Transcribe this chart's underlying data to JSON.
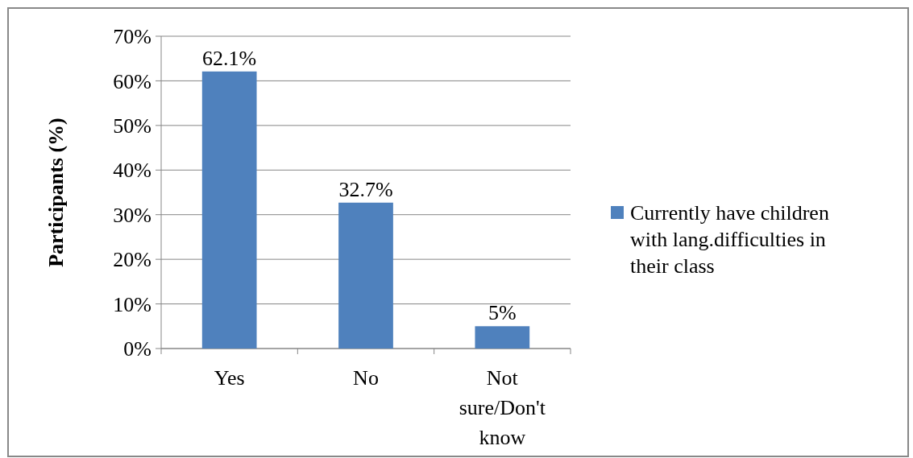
{
  "chart_data": {
    "type": "bar",
    "ylabel": "Participants (%)",
    "categories": [
      "Yes",
      "No",
      "Not sure/Don't know"
    ],
    "series": [
      {
        "name": "Currently have children with lang.difficulties in their class",
        "color": "#4f81bd",
        "values": [
          62.1,
          32.7,
          5
        ],
        "value_labels": [
          "62.1%",
          "32.7%",
          "5%"
        ]
      }
    ],
    "ylim": [
      0,
      70
    ],
    "yticks": [
      {
        "value": 0,
        "label": "0%"
      },
      {
        "value": 10,
        "label": "10%"
      },
      {
        "value": 20,
        "label": "20%"
      },
      {
        "value": 30,
        "label": "30%"
      },
      {
        "value": 40,
        "label": "40%"
      },
      {
        "value": 50,
        "label": "50%"
      },
      {
        "value": 60,
        "label": "60%"
      },
      {
        "value": 70,
        "label": "70%"
      }
    ],
    "grid": "y",
    "legend": "right"
  }
}
